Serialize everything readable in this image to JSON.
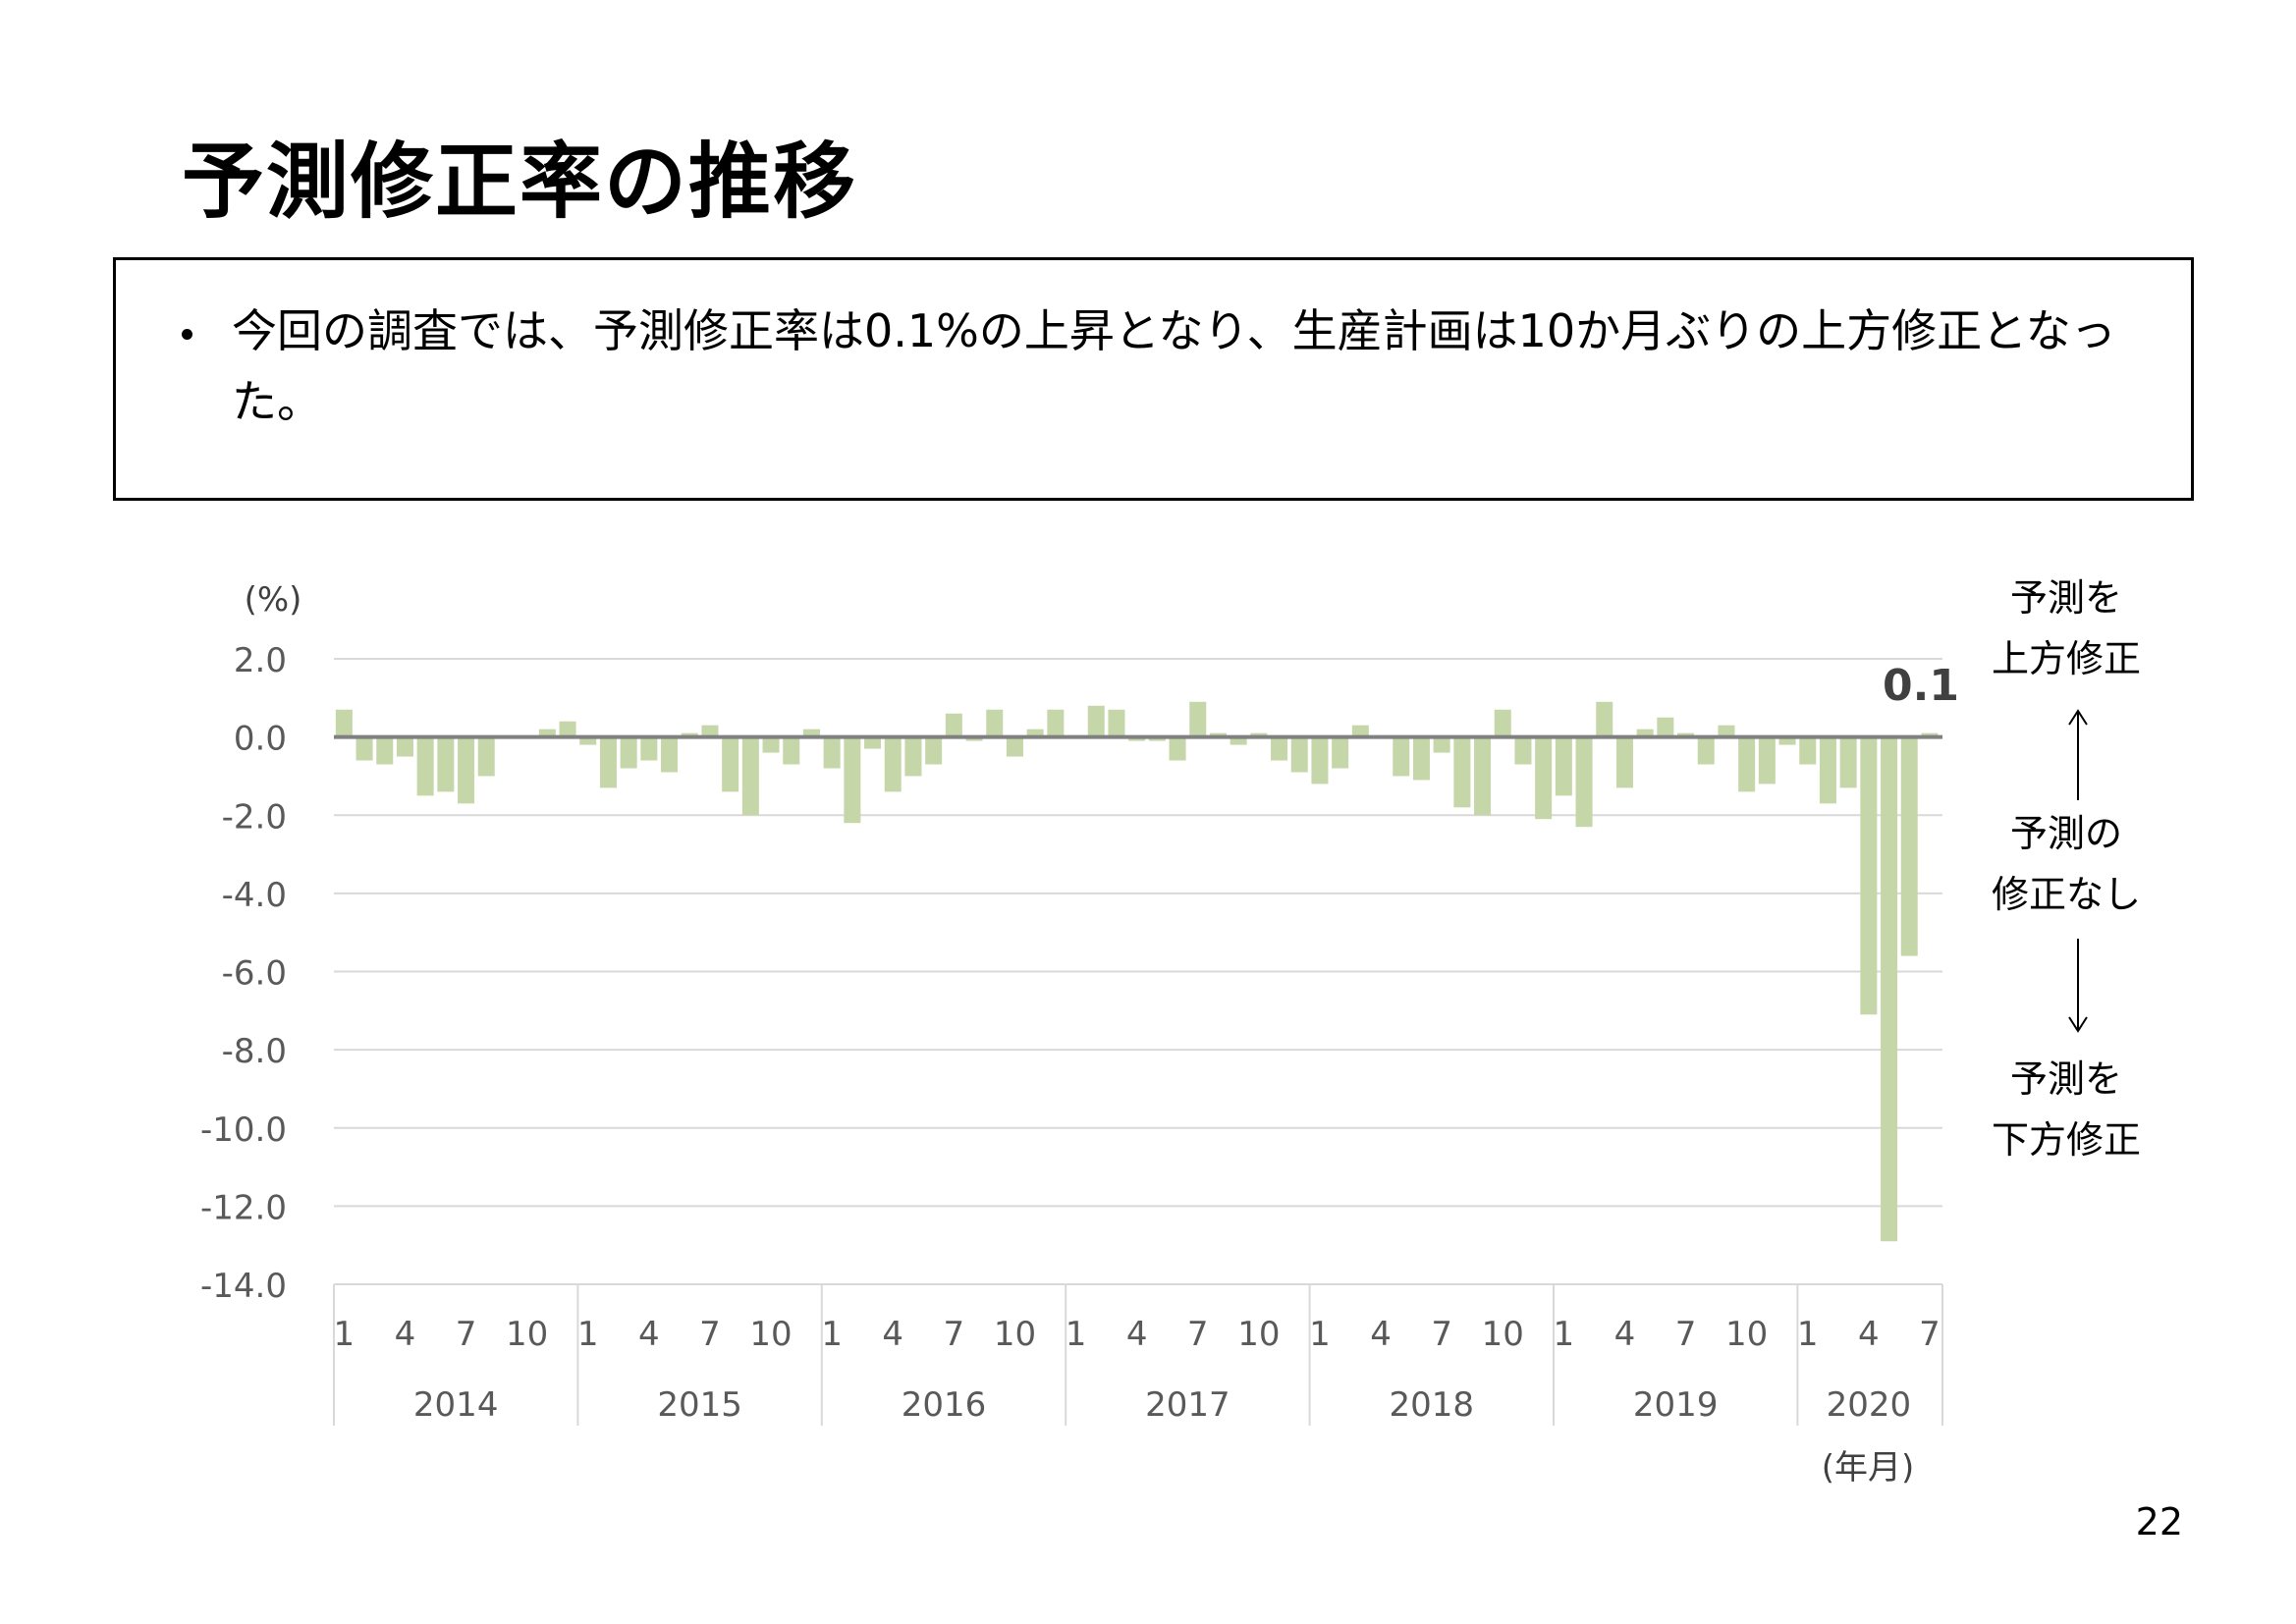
{
  "title": "予測修正率の推移",
  "summary": "今回の調査では、予測修正率は0.1%の上昇となり、生産計画は10か月ぶりの上方修正となった。",
  "page_number": "22",
  "chart_data": {
    "type": "bar",
    "ylabel": "(%)",
    "xlabel": "(年月)",
    "ylim": [
      -14,
      2
    ],
    "yticks": [
      "2.0",
      "0.0",
      "-2.0",
      "-4.0",
      "-6.0",
      "-8.0",
      "-10.0",
      "-12.0",
      "-14.0"
    ],
    "ytick_values": [
      2,
      0,
      -2,
      -4,
      -6,
      -8,
      -10,
      -12,
      -14
    ],
    "grid": true,
    "bar_color": "#c5d6a8",
    "zero_line_color": "#808080",
    "month_tick_labels": [
      "1",
      "4",
      "7",
      "10"
    ],
    "month_tick_positions": [
      1,
      4,
      7,
      10
    ],
    "years": [
      {
        "year": "2014",
        "values": [
          0.7,
          -0.6,
          -0.7,
          -0.5,
          -1.5,
          -1.4,
          -1.7,
          -1.0,
          0.0,
          0.0,
          0.2,
          0.4
        ]
      },
      {
        "year": "2015",
        "values": [
          -0.2,
          -1.3,
          -0.8,
          -0.6,
          -0.9,
          0.1,
          0.3,
          -1.4,
          -2.0,
          -0.4,
          -0.7,
          0.2
        ]
      },
      {
        "year": "2016",
        "values": [
          -0.8,
          -2.2,
          -0.3,
          -1.4,
          -1.0,
          -0.7,
          0.6,
          -0.1,
          0.7,
          -0.5,
          0.2,
          0.7
        ]
      },
      {
        "year": "2017",
        "values": [
          0.0,
          0.8,
          0.7,
          -0.1,
          -0.1,
          -0.6,
          0.9,
          0.1,
          -0.2,
          0.1,
          -0.6,
          -0.9
        ]
      },
      {
        "year": "2018",
        "values": [
          -1.2,
          -0.8,
          0.3,
          0.0,
          -1.0,
          -1.1,
          -0.4,
          -1.8,
          -2.0,
          0.7,
          -0.7,
          -2.1
        ]
      },
      {
        "year": "2019",
        "values": [
          -1.5,
          -2.3,
          0.9,
          -1.3,
          0.2,
          0.5,
          0.1,
          -0.7,
          0.3,
          -1.4,
          -1.2,
          -0.2
        ]
      },
      {
        "year": "2020",
        "values": [
          -0.7,
          -1.7,
          -1.3,
          -7.1,
          -12.9,
          -5.6,
          0.1
        ]
      }
    ],
    "data_label": {
      "text": "0.1",
      "year": "2020",
      "month": 7
    },
    "annotations": {
      "upper": "予測を\n上方修正",
      "middle": "予測の\n修正なし",
      "lower": "予測を\n下方修正"
    }
  }
}
